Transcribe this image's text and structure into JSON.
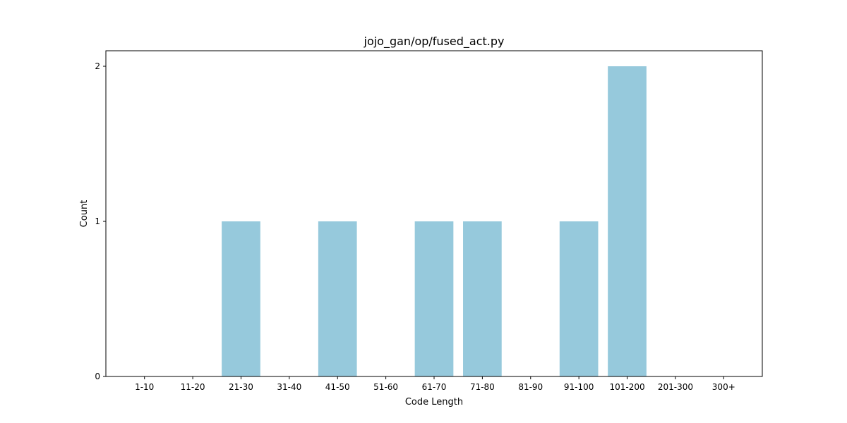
{
  "chart_data": {
    "type": "bar",
    "title": "jojo_gan/op/fused_act.py",
    "xlabel": "Code Length",
    "ylabel": "Count",
    "categories": [
      "1-10",
      "11-20",
      "21-30",
      "31-40",
      "41-50",
      "51-60",
      "61-70",
      "71-80",
      "81-90",
      "91-100",
      "101-200",
      "201-300",
      "300+"
    ],
    "values": [
      0,
      0,
      1,
      0,
      1,
      0,
      1,
      1,
      0,
      1,
      2,
      0,
      0
    ],
    "yticks": [
      0,
      1,
      2
    ],
    "ylim": [
      0,
      2.1
    ],
    "grid": false,
    "bar_color": "#96c9dc"
  }
}
